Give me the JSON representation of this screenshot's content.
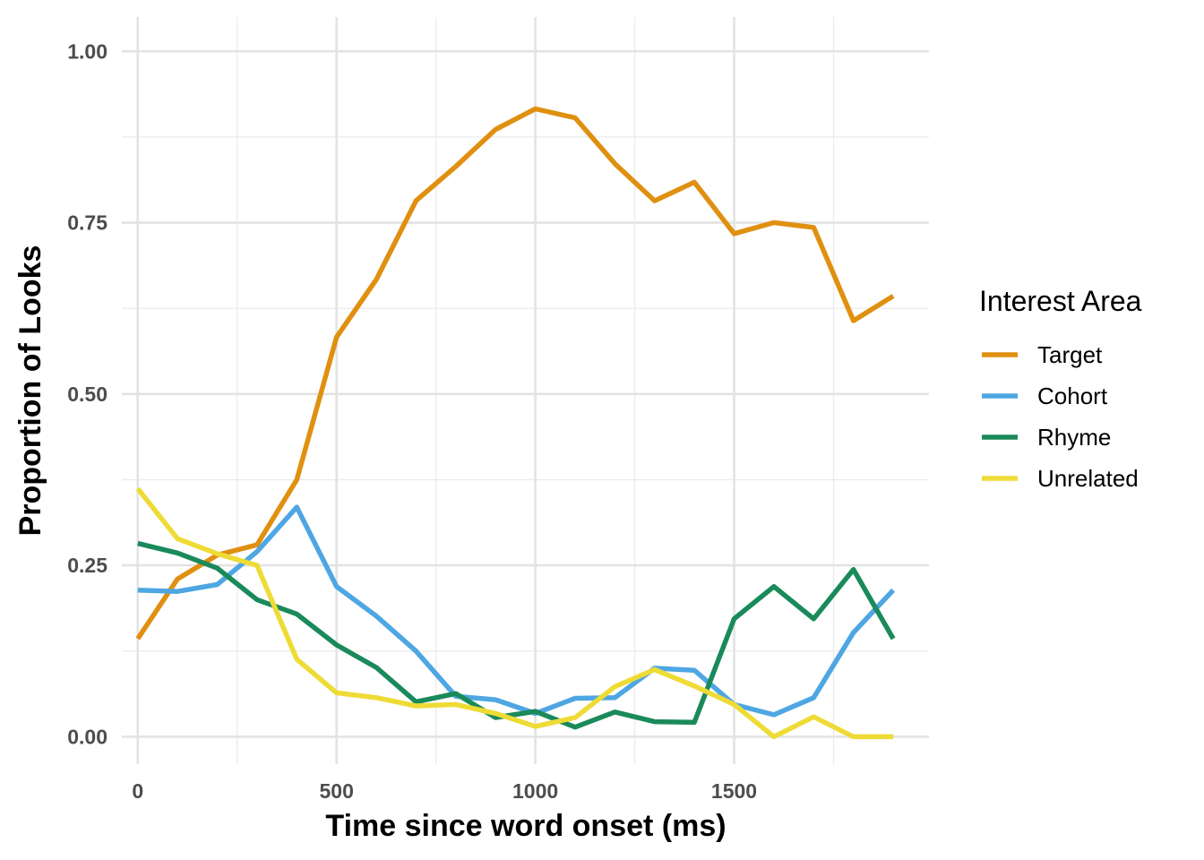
{
  "chart_data": {
    "type": "line",
    "xlabel": "Time since word onset (ms)",
    "ylabel": "Proportion of Looks",
    "xlim": [
      -40,
      1990
    ],
    "ylim": [
      -0.04,
      1.05
    ],
    "x_ticks": [
      0,
      500,
      1000,
      1500
    ],
    "x_tick_labels": [
      "0",
      "500",
      "1000",
      "1500"
    ],
    "x_minor_ticks": [
      250,
      750,
      1250,
      1750
    ],
    "y_ticks": [
      0,
      0.25,
      0.5,
      0.75,
      1.0
    ],
    "y_tick_labels": [
      "0.00",
      "0.25",
      "0.50",
      "0.75",
      "1.00"
    ],
    "y_minor_ticks": [
      0.125,
      0.375,
      0.625,
      0.875
    ],
    "grid": true,
    "legend": {
      "title": "Interest Area",
      "position": "right"
    },
    "x": [
      0,
      100,
      200,
      300,
      400,
      500,
      600,
      700,
      800,
      900,
      1000,
      1100,
      1200,
      1300,
      1400,
      1500,
      1600,
      1700,
      1800,
      1900
    ],
    "series": [
      {
        "name": "Target",
        "color": "#E09010",
        "values": [
          0.143,
          0.23,
          0.265,
          0.28,
          0.375,
          0.583,
          0.667,
          0.782,
          0.832,
          0.886,
          0.916,
          0.903,
          0.836,
          0.782,
          0.809,
          0.734,
          0.75,
          0.743,
          0.607,
          0.643
        ]
      },
      {
        "name": "Cohort",
        "color": "#4EA6E3",
        "values": [
          0.214,
          0.212,
          0.222,
          0.27,
          0.335,
          0.219,
          0.176,
          0.125,
          0.059,
          0.054,
          0.034,
          0.056,
          0.057,
          0.1,
          0.097,
          0.047,
          0.032,
          0.057,
          0.152,
          0.214
        ]
      },
      {
        "name": "Rhyme",
        "color": "#1A8A5A",
        "values": [
          0.282,
          0.268,
          0.246,
          0.2,
          0.179,
          0.134,
          0.101,
          0.051,
          0.063,
          0.028,
          0.037,
          0.014,
          0.036,
          0.022,
          0.021,
          0.172,
          0.219,
          0.172,
          0.244,
          0.143
        ]
      },
      {
        "name": "Unrelated",
        "color": "#EEDB35",
        "values": [
          0.362,
          0.289,
          0.267,
          0.25,
          0.113,
          0.064,
          0.057,
          0.045,
          0.047,
          0.034,
          0.015,
          0.028,
          0.073,
          0.098,
          0.074,
          0.047,
          0.0,
          0.029,
          0.0,
          0.0
        ]
      }
    ]
  }
}
